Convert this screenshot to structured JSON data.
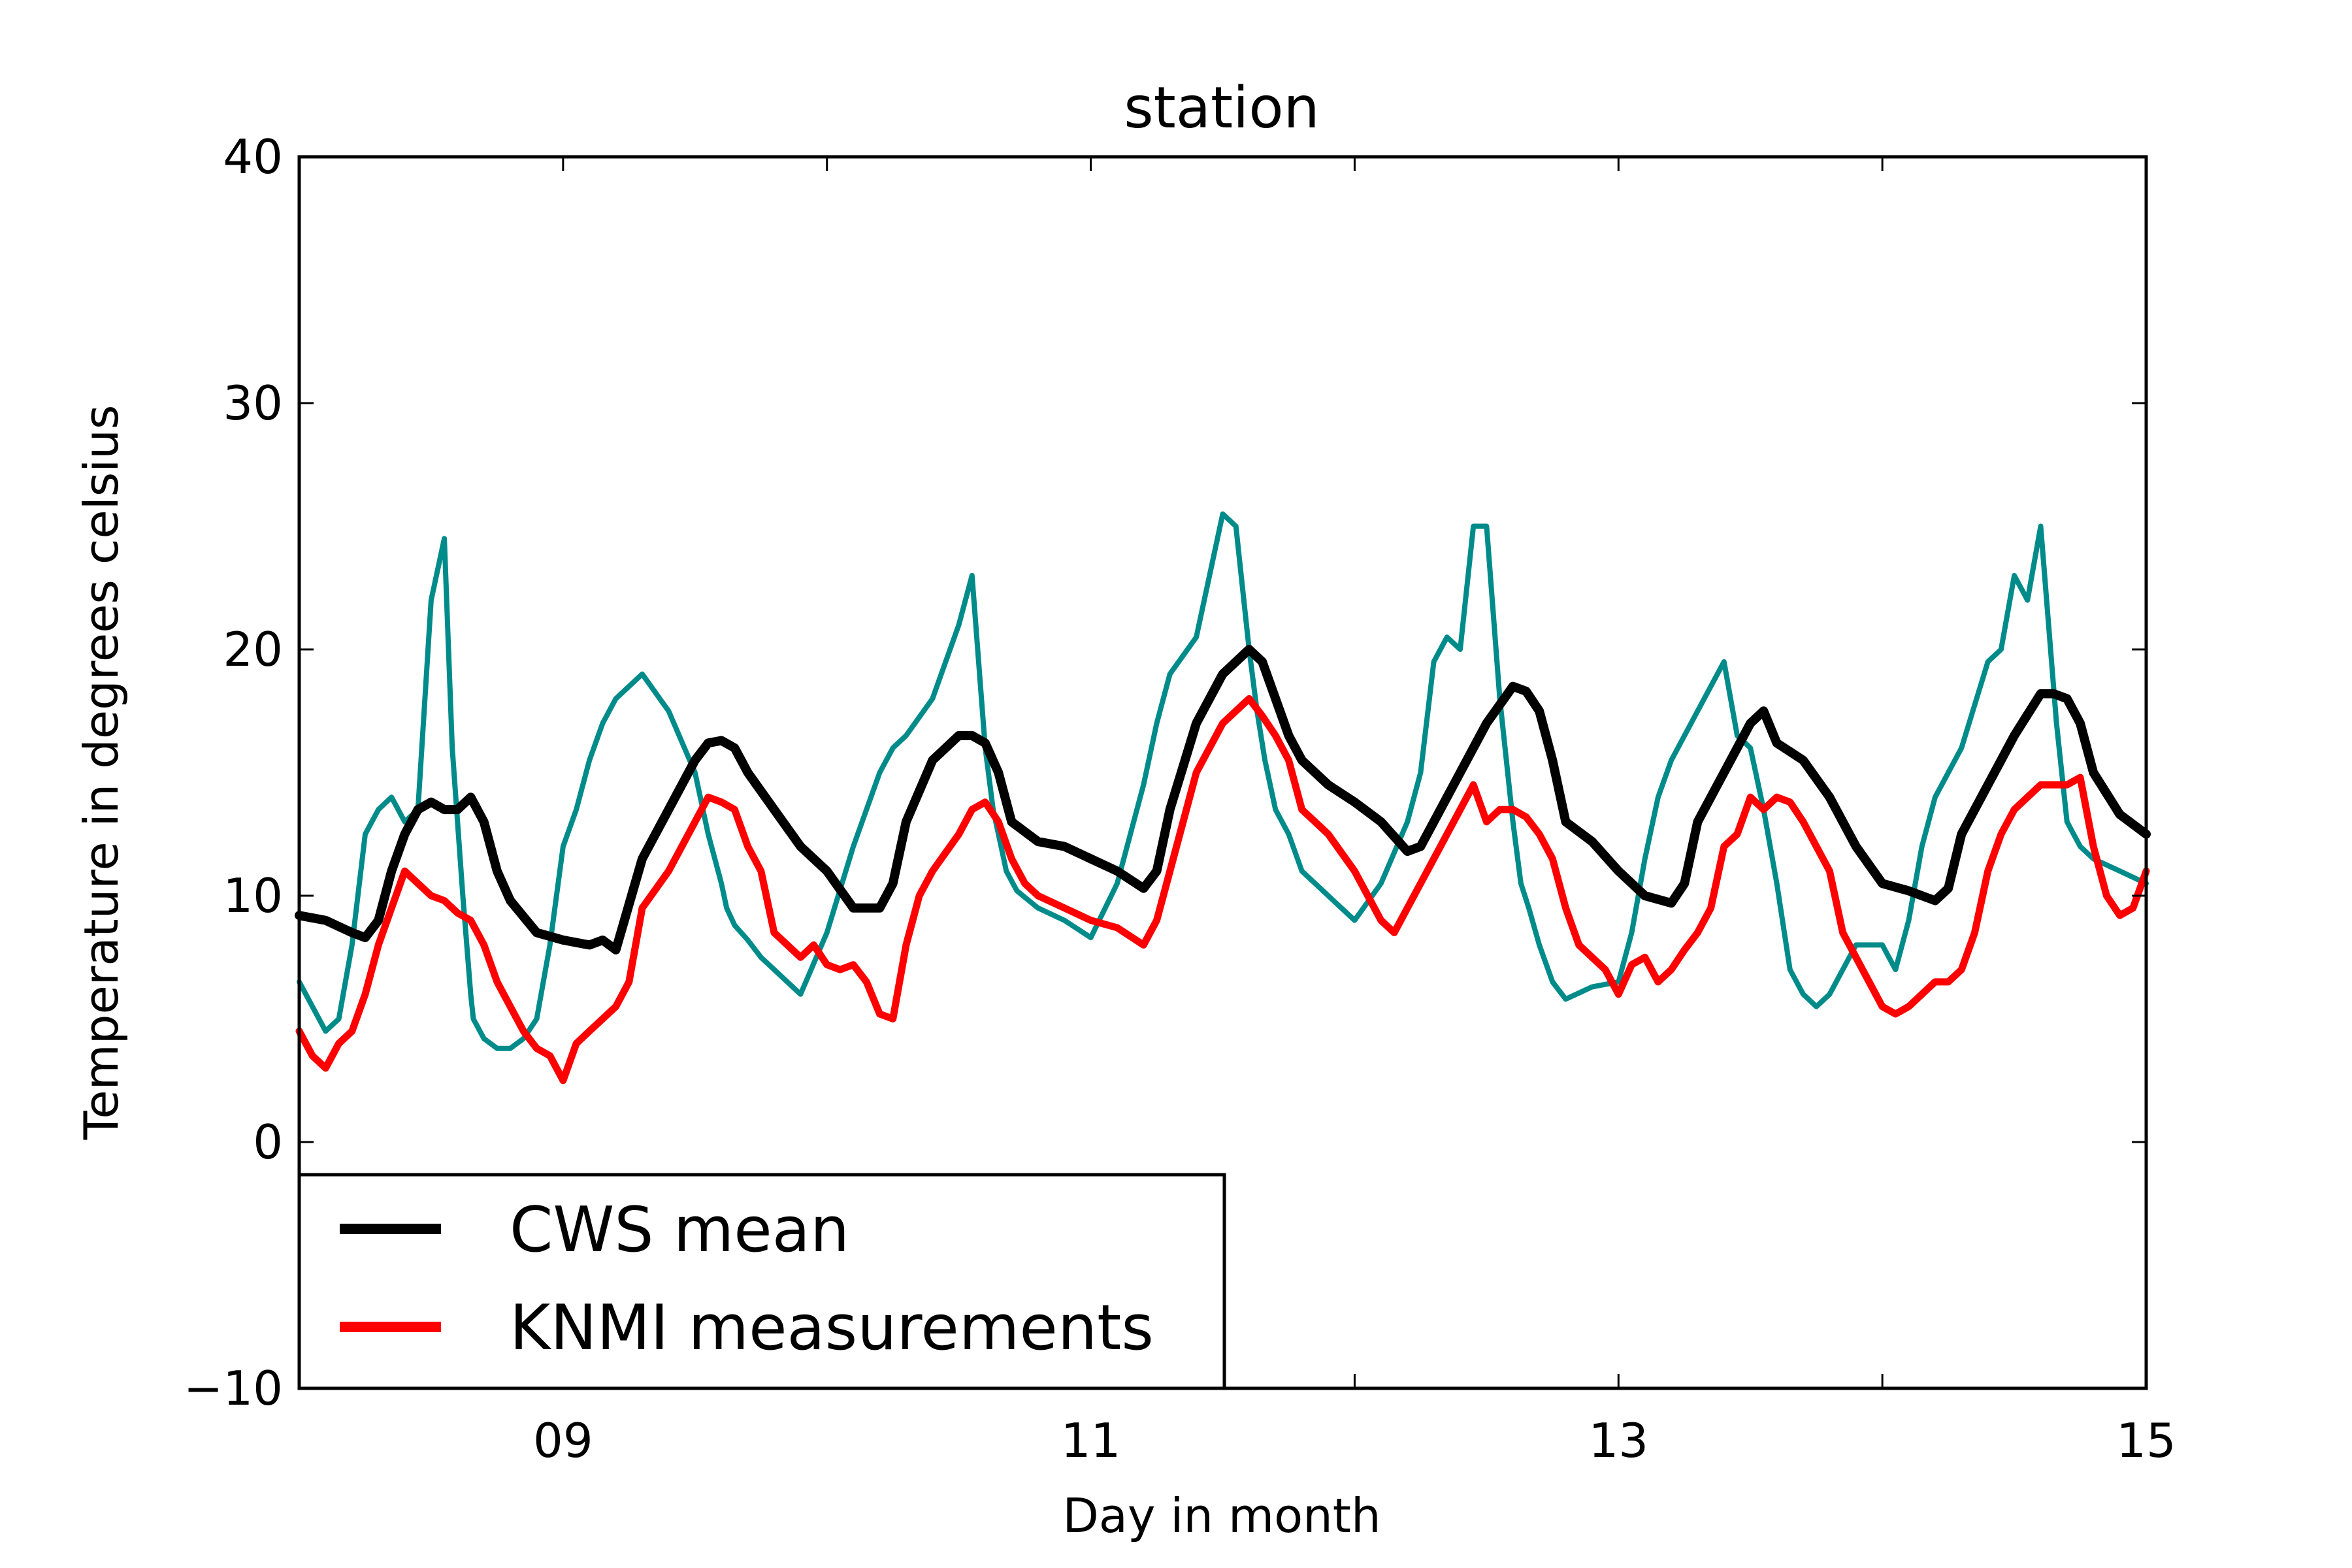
{
  "chart_data": {
    "type": "line",
    "title": "station",
    "xlabel": "Day in month",
    "ylabel": "Temperature in degrees celsius",
    "xlim": [
      8,
      15
    ],
    "ylim": [
      -10,
      40
    ],
    "xticks": [
      9,
      11,
      13,
      15
    ],
    "xtick_labels": [
      "09",
      "11",
      "13",
      "15"
    ],
    "yticks": [
      -10,
      0,
      10,
      20,
      30,
      40
    ],
    "ytick_labels": [
      "−10",
      "0",
      "10",
      "20",
      "30",
      "40"
    ],
    "minor_xticks": [
      10,
      12,
      14
    ],
    "grid": false,
    "legend": {
      "position": "lower-left",
      "entries": [
        {
          "name": "CWS mean",
          "color": "#000000"
        },
        {
          "name": "KNMI measurements",
          "color": "#ff0000"
        }
      ]
    },
    "series": [
      {
        "name": "",
        "color": "#008b8b",
        "x": [
          8.0,
          8.1,
          8.15,
          8.2,
          8.25,
          8.3,
          8.35,
          8.4,
          8.45,
          8.5,
          8.55,
          8.58,
          8.62,
          8.65,
          8.66,
          8.7,
          8.75,
          8.8,
          8.85,
          8.9,
          8.95,
          9.0,
          9.05,
          9.1,
          9.15,
          9.2,
          9.3,
          9.4,
          9.5,
          9.55,
          9.6,
          9.62,
          9.65,
          9.7,
          9.75,
          9.8,
          9.85,
          9.9,
          10.0,
          10.1,
          10.2,
          10.25,
          10.3,
          10.4,
          10.5,
          10.55,
          10.6,
          10.63,
          10.66,
          10.68,
          10.72,
          10.8,
          10.9,
          11.0,
          11.1,
          11.2,
          11.25,
          11.3,
          11.4,
          11.5,
          11.55,
          11.6,
          11.63,
          11.66,
          11.7,
          11.75,
          11.8,
          11.9,
          12.0,
          12.1,
          12.2,
          12.25,
          12.3,
          12.35,
          12.4,
          12.45,
          12.5,
          12.55,
          12.6,
          12.63,
          12.66,
          12.7,
          12.75,
          12.8,
          12.9,
          13.0,
          13.05,
          13.1,
          13.15,
          13.2,
          13.3,
          13.4,
          13.45,
          13.5,
          13.55,
          13.6,
          13.65,
          13.7,
          13.75,
          13.8,
          13.9,
          14.0,
          14.05,
          14.1,
          14.15,
          14.2,
          14.3,
          14.4,
          14.45,
          14.5,
          14.55,
          14.6,
          14.63,
          14.66,
          14.7,
          14.75,
          14.8,
          14.9,
          15.0
        ],
        "y": [
          6.5,
          4.5,
          5.0,
          8.0,
          12.5,
          13.5,
          14.0,
          13.0,
          13.5,
          22.0,
          24.5,
          16.0,
          10.0,
          6.0,
          5.0,
          4.2,
          3.8,
          3.8,
          4.2,
          5.0,
          8.0,
          12.0,
          13.5,
          15.5,
          17.0,
          18.0,
          19.0,
          17.5,
          15.0,
          12.5,
          10.5,
          9.5,
          8.8,
          8.2,
          7.5,
          7.0,
          6.5,
          6.0,
          8.5,
          12.0,
          15.0,
          16.0,
          16.5,
          18.0,
          21.0,
          23.0,
          16.0,
          13.5,
          12.0,
          11.0,
          10.2,
          9.5,
          9.0,
          8.3,
          10.5,
          14.5,
          17.0,
          19.0,
          20.5,
          25.5,
          25.0,
          20.0,
          17.5,
          15.5,
          13.5,
          12.5,
          11.0,
          10.0,
          9.0,
          10.5,
          13.0,
          15.0,
          19.5,
          20.5,
          20.0,
          25.0,
          25.0,
          18.0,
          13.0,
          10.5,
          9.5,
          8.0,
          6.5,
          5.8,
          6.3,
          6.5,
          8.5,
          11.5,
          14.0,
          15.5,
          17.5,
          19.5,
          16.5,
          16.0,
          13.5,
          10.5,
          7.0,
          6.0,
          5.5,
          6.0,
          8.0,
          8.0,
          7.0,
          9.0,
          12.0,
          14.0,
          16.0,
          19.5,
          20.0,
          23.0,
          22.0,
          25.0,
          21.0,
          17.0,
          13.0,
          12.0,
          11.5,
          11.0,
          10.5
        ]
      },
      {
        "name": "CWS mean",
        "color": "#000000",
        "x": [
          8.0,
          8.1,
          8.2,
          8.25,
          8.3,
          8.35,
          8.4,
          8.45,
          8.5,
          8.55,
          8.6,
          8.65,
          8.7,
          8.75,
          8.8,
          8.9,
          9.0,
          9.1,
          9.15,
          9.2,
          9.3,
          9.4,
          9.5,
          9.55,
          9.6,
          9.65,
          9.7,
          9.8,
          9.9,
          10.0,
          10.1,
          10.2,
          10.25,
          10.3,
          10.4,
          10.5,
          10.55,
          10.6,
          10.65,
          10.7,
          10.8,
          10.9,
          11.0,
          11.1,
          11.2,
          11.25,
          11.3,
          11.4,
          11.5,
          11.6,
          11.65,
          11.7,
          11.75,
          11.8,
          11.9,
          12.0,
          12.1,
          12.2,
          12.25,
          12.3,
          12.4,
          12.5,
          12.6,
          12.65,
          12.7,
          12.75,
          12.8,
          12.9,
          13.0,
          13.1,
          13.2,
          13.25,
          13.3,
          13.4,
          13.5,
          13.55,
          13.6,
          13.7,
          13.8,
          13.9,
          14.0,
          14.1,
          14.15,
          14.2,
          14.25,
          14.3,
          14.4,
          14.5,
          14.6,
          14.65,
          14.7,
          14.75,
          14.8,
          14.9,
          15.0
        ],
        "y": [
          9.2,
          9.0,
          8.5,
          8.3,
          9.0,
          11.0,
          12.5,
          13.5,
          13.8,
          13.5,
          13.5,
          14.0,
          13.0,
          11.0,
          9.8,
          8.5,
          8.2,
          8.0,
          8.2,
          7.8,
          11.5,
          13.5,
          15.5,
          16.2,
          16.3,
          16.0,
          15.0,
          13.5,
          12.0,
          11.0,
          9.5,
          9.5,
          10.5,
          13.0,
          15.5,
          16.5,
          16.5,
          16.2,
          15.0,
          13.0,
          12.2,
          12.0,
          11.5,
          11.0,
          10.3,
          11.0,
          13.5,
          17.0,
          19.0,
          20.0,
          19.5,
          18.0,
          16.5,
          15.5,
          14.5,
          13.8,
          13.0,
          11.8,
          12.0,
          13.0,
          15.0,
          17.0,
          18.5,
          18.3,
          17.5,
          15.5,
          13.0,
          12.2,
          11.0,
          10.0,
          9.7,
          10.5,
          13.0,
          15.0,
          17.0,
          17.5,
          16.2,
          15.5,
          14.0,
          12.0,
          10.5,
          10.2,
          10.0,
          9.8,
          10.3,
          12.5,
          14.5,
          16.5,
          18.2,
          18.2,
          18.0,
          17.0,
          15.0,
          13.3,
          12.5
        ]
      },
      {
        "name": "KNMI measurements",
        "color": "#ff0000",
        "x": [
          8.0,
          8.05,
          8.1,
          8.15,
          8.2,
          8.25,
          8.3,
          8.35,
          8.4,
          8.45,
          8.5,
          8.55,
          8.6,
          8.65,
          8.7,
          8.75,
          8.8,
          8.85,
          8.9,
          8.95,
          9.0,
          9.05,
          9.1,
          9.15,
          9.2,
          9.25,
          9.3,
          9.4,
          9.5,
          9.55,
          9.6,
          9.65,
          9.7,
          9.75,
          9.8,
          9.85,
          9.9,
          9.95,
          10.0,
          10.05,
          10.1,
          10.15,
          10.2,
          10.25,
          10.3,
          10.35,
          10.4,
          10.5,
          10.55,
          10.6,
          10.65,
          10.7,
          10.75,
          10.8,
          10.9,
          11.0,
          11.1,
          11.2,
          11.25,
          11.3,
          11.4,
          11.5,
          11.55,
          11.6,
          11.65,
          11.7,
          11.75,
          11.8,
          11.85,
          11.9,
          12.0,
          12.05,
          12.1,
          12.15,
          12.2,
          12.25,
          12.3,
          12.35,
          12.4,
          12.45,
          12.5,
          12.55,
          12.6,
          12.65,
          12.7,
          12.75,
          12.8,
          12.85,
          12.9,
          12.95,
          13.0,
          13.05,
          13.1,
          13.15,
          13.2,
          13.25,
          13.3,
          13.35,
          13.4,
          13.45,
          13.5,
          13.55,
          13.6,
          13.65,
          13.7,
          13.75,
          13.8,
          13.85,
          13.9,
          13.95,
          14.0,
          14.05,
          14.1,
          14.15,
          14.2,
          14.25,
          14.3,
          14.35,
          14.4,
          14.45,
          14.5,
          14.55,
          14.6,
          14.65,
          14.7,
          14.75,
          14.8,
          14.85,
          14.9,
          14.95,
          15.0
        ],
        "y": [
          4.5,
          3.5,
          3.0,
          4.0,
          4.5,
          6.0,
          8.0,
          9.5,
          11.0,
          10.5,
          10.0,
          9.8,
          9.3,
          9.0,
          8.0,
          6.5,
          5.5,
          4.5,
          3.8,
          3.5,
          2.5,
          4.0,
          4.5,
          5.0,
          5.5,
          6.5,
          9.5,
          11.0,
          13.0,
          14.0,
          13.8,
          13.5,
          12.0,
          11.0,
          8.5,
          8.0,
          7.5,
          8.0,
          7.2,
          7.0,
          7.2,
          6.5,
          5.2,
          5.0,
          8.0,
          10.0,
          11.0,
          12.5,
          13.5,
          13.8,
          13.0,
          11.5,
          10.5,
          10.0,
          9.5,
          9.0,
          8.7,
          8.0,
          9.0,
          11.0,
          15.0,
          17.0,
          17.5,
          18.0,
          17.3,
          16.5,
          15.5,
          13.5,
          13.0,
          12.5,
          11.0,
          10.0,
          9.0,
          8.5,
          9.5,
          10.5,
          11.5,
          12.5,
          13.5,
          14.5,
          13.0,
          13.5,
          13.5,
          13.2,
          12.5,
          11.5,
          9.5,
          8.0,
          7.5,
          7.0,
          6.0,
          7.2,
          7.5,
          6.5,
          7.0,
          7.8,
          8.5,
          9.5,
          12.0,
          12.5,
          14.0,
          13.5,
          14.0,
          13.8,
          13.0,
          12.0,
          11.0,
          8.5,
          7.5,
          6.5,
          5.5,
          5.2,
          5.5,
          6.0,
          6.5,
          6.5,
          7.0,
          8.5,
          11.0,
          12.5,
          13.5,
          14.0,
          14.5,
          14.5,
          14.5,
          14.8,
          12.0,
          10.0,
          9.2,
          9.5,
          11.0
        ]
      }
    ]
  }
}
